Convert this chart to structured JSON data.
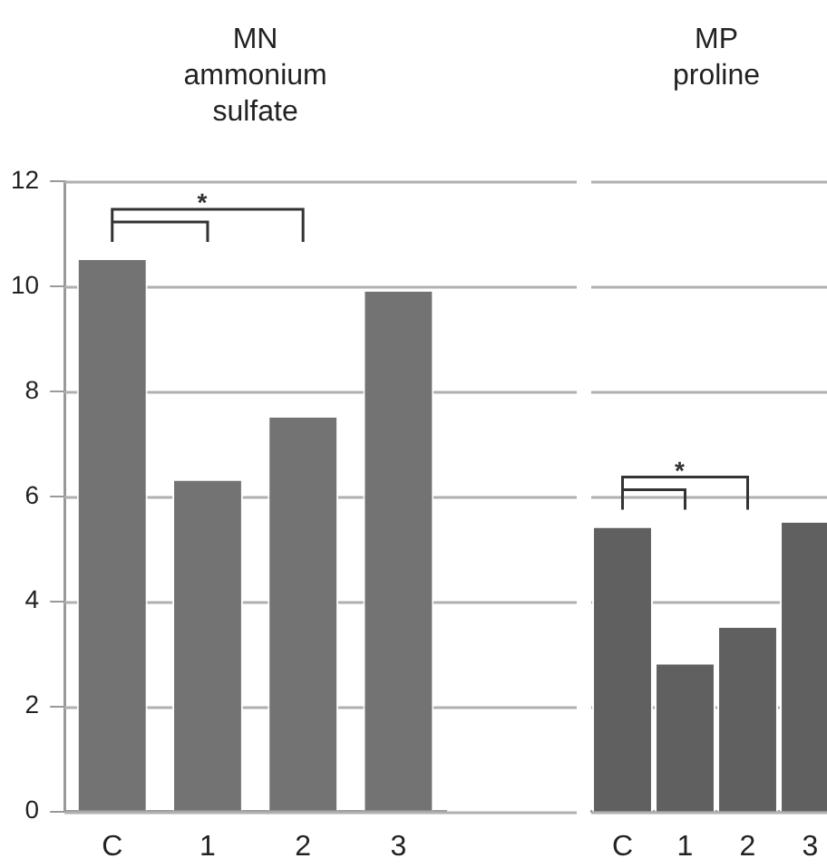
{
  "chart_data": [
    {
      "type": "bar",
      "title": "MN\nammonium\nsulfate",
      "categories": [
        "C",
        "1",
        "2",
        "3"
      ],
      "values": [
        10.5,
        6.3,
        7.5,
        9.9
      ],
      "color": "#737373",
      "ylim": [
        0,
        12
      ],
      "yticks": [
        0,
        2,
        4,
        6,
        8,
        10,
        12
      ],
      "grid": "y",
      "legend": false,
      "annotations": [
        "*"
      ]
    },
    {
      "type": "bar",
      "title": "MP\nproline",
      "categories": [
        "C",
        "1",
        "2",
        "3"
      ],
      "values": [
        5.4,
        2.8,
        3.5,
        5.5
      ],
      "color": "#606060",
      "ylim": [
        0,
        12
      ],
      "yticks": [
        0,
        2,
        4,
        6,
        8,
        10,
        12
      ],
      "grid": "y",
      "legend": false,
      "tick_labels": "x",
      "annotations": [
        "*"
      ]
    }
  ]
}
